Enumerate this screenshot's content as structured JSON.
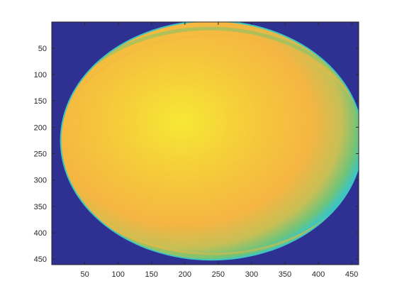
{
  "chart_data": {
    "type": "heatmap",
    "title": "",
    "xlabel": "",
    "ylabel": "",
    "xlim": [
      0.5,
      460.5
    ],
    "ylim": [
      0.5,
      460.5
    ],
    "y_direction": "reverse",
    "grid": false,
    "legend": "none",
    "colormap": "parula",
    "x_ticks": [
      50,
      100,
      150,
      200,
      250,
      300,
      350,
      400,
      450
    ],
    "y_ticks": [
      50,
      100,
      150,
      200,
      250,
      300,
      350,
      400,
      450
    ],
    "x_tick_labels": [
      "50",
      "100",
      "150",
      "200",
      "250",
      "300",
      "350",
      "400",
      "450"
    ],
    "y_tick_labels": [
      "50",
      "100",
      "150",
      "200",
      "250",
      "300",
      "350",
      "400",
      "450"
    ],
    "image": {
      "description_values": "normalized intensity image of an elliptical bright disc on a dark background",
      "ellipse_center": [
        240,
        225
      ],
      "ellipse_semi_axes": [
        225,
        225
      ],
      "peak_location": [
        225,
        220
      ],
      "background_level": 0.05,
      "rim_level": 0.55,
      "edge_level": 0.62,
      "peak_level": 0.97,
      "crescent": {
        "center": [
          252,
          228
        ],
        "semi_axes": [
          238,
          215
        ],
        "level": 0.48
      }
    },
    "colors": {
      "background": "#2e3192",
      "rim_cyan": "#3fc5c0",
      "mid_green": "#7ec46a",
      "outer_orange": "#f5b542",
      "peak_yellow": "#f7e834"
    }
  }
}
